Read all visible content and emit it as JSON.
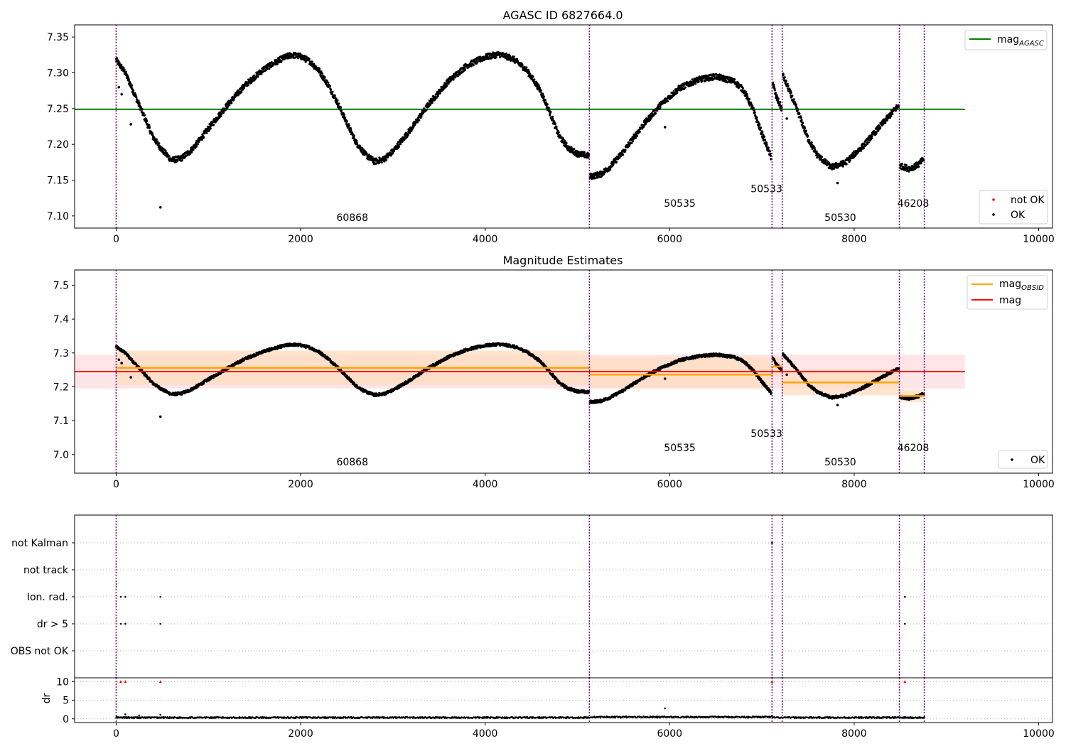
{
  "figure": {
    "title1": "AGASC ID 6827664.0",
    "title2": "Magnitude Estimates"
  },
  "colors": {
    "agasc_line": "#008000",
    "obsid_line": "#ffa500",
    "mag_line": "#ff0000",
    "obsid_band": "#ffdcc0",
    "mag_band": "#ffe1e6",
    "obs_boundary": "#800080",
    "points_ok": "#000000",
    "points_not_ok": "#ff0000",
    "grid": "#b0b0b0"
  },
  "chart_data": [
    {
      "type": "scatter",
      "title": "AGASC ID 6827664.0",
      "xlim": [
        -450,
        10150
      ],
      "ylim": [
        7.083,
        7.367
      ],
      "xticks": [
        0,
        2000,
        4000,
        6000,
        8000,
        10000
      ],
      "yticks": [
        7.1,
        7.15,
        7.2,
        7.25,
        7.3,
        7.35
      ],
      "ytick_labels": [
        "7.10",
        "7.15",
        "7.20",
        "7.25",
        "7.30",
        "7.35"
      ],
      "legend": {
        "position": "top-right",
        "entries": [
          "mag_AGASC"
        ]
      },
      "legend2": {
        "position": "bottom-right",
        "entries": [
          "not OK",
          "OK"
        ]
      },
      "hline": {
        "name": "mag_AGASC",
        "y": 7.249,
        "x": [
          -450,
          9200
        ]
      },
      "obs_boundaries": [
        0,
        5130,
        7110,
        7220,
        8490,
        8760
      ],
      "obsid_labels": [
        {
          "text": "60868",
          "x": 2560,
          "y": 7.093
        },
        {
          "text": "50535",
          "x": 6110,
          "y": 7.113
        },
        {
          "text": "50533",
          "x": 7050,
          "y": 7.133
        },
        {
          "text": "50530",
          "x": 7850,
          "y": 7.093
        },
        {
          "text": "46208",
          "x": 8640,
          "y": 7.113
        }
      ],
      "ok_trend": [
        [
          0,
          7.318
        ],
        [
          100,
          7.3
        ],
        [
          200,
          7.27
        ],
        [
          300,
          7.24
        ],
        [
          400,
          7.21
        ],
        [
          500,
          7.192
        ],
        [
          600,
          7.178
        ],
        [
          700,
          7.18
        ],
        [
          800,
          7.19
        ],
        [
          900,
          7.205
        ],
        [
          1000,
          7.222
        ],
        [
          1200,
          7.254
        ],
        [
          1400,
          7.283
        ],
        [
          1600,
          7.305
        ],
        [
          1800,
          7.32
        ],
        [
          1900,
          7.325
        ],
        [
          2000,
          7.323
        ],
        [
          2100,
          7.316
        ],
        [
          2200,
          7.303
        ],
        [
          2300,
          7.283
        ],
        [
          2400,
          7.258
        ],
        [
          2500,
          7.23
        ],
        [
          2600,
          7.203
        ],
        [
          2700,
          7.186
        ],
        [
          2800,
          7.176
        ],
        [
          2900,
          7.179
        ],
        [
          3000,
          7.19
        ],
        [
          3200,
          7.222
        ],
        [
          3400,
          7.258
        ],
        [
          3600,
          7.288
        ],
        [
          3800,
          7.31
        ],
        [
          4000,
          7.322
        ],
        [
          4150,
          7.326
        ],
        [
          4300,
          7.32
        ],
        [
          4450,
          7.304
        ],
        [
          4600,
          7.275
        ],
        [
          4700,
          7.245
        ],
        [
          4800,
          7.212
        ],
        [
          4900,
          7.195
        ],
        [
          5000,
          7.187
        ],
        [
          5125,
          7.184
        ],
        [
          5135,
          7.155
        ],
        [
          5250,
          7.158
        ],
        [
          5350,
          7.168
        ],
        [
          5500,
          7.19
        ],
        [
          5700,
          7.225
        ],
        [
          5900,
          7.255
        ],
        [
          6100,
          7.278
        ],
        [
          6300,
          7.29
        ],
        [
          6500,
          7.295
        ],
        [
          6700,
          7.288
        ],
        [
          6800,
          7.276
        ],
        [
          6900,
          7.25
        ],
        [
          7000,
          7.215
        ],
        [
          7100,
          7.182
        ],
        [
          7115,
          7.288
        ],
        [
          7150,
          7.268
        ],
        [
          7215,
          7.25
        ],
        [
          7225,
          7.297
        ],
        [
          7300,
          7.274
        ],
        [
          7400,
          7.242
        ],
        [
          7500,
          7.208
        ],
        [
          7600,
          7.185
        ],
        [
          7750,
          7.168
        ],
        [
          7900,
          7.174
        ],
        [
          8100,
          7.198
        ],
        [
          8300,
          7.228
        ],
        [
          8485,
          7.255
        ],
        [
          8495,
          7.17
        ],
        [
          8600,
          7.166
        ],
        [
          8700,
          7.172
        ],
        [
          8755,
          7.18
        ]
      ],
      "ok_outliers": [
        [
          30,
          7.28
        ],
        [
          60,
          7.27
        ],
        [
          160,
          7.228
        ],
        [
          480,
          7.112
        ],
        [
          5950,
          7.224
        ],
        [
          7270,
          7.236
        ],
        [
          7820,
          7.146
        ]
      ],
      "noise": 0.004
    },
    {
      "type": "scatter",
      "title": "Magnitude Estimates",
      "xlim": [
        -450,
        10150
      ],
      "ylim": [
        6.945,
        7.545
      ],
      "xticks": [
        0,
        2000,
        4000,
        6000,
        8000,
        10000
      ],
      "yticks": [
        7.0,
        7.1,
        7.2,
        7.3,
        7.4,
        7.5
      ],
      "ytick_labels": [
        "7.0",
        "7.1",
        "7.2",
        "7.3",
        "7.4",
        "7.5"
      ],
      "legend": {
        "position": "top-right",
        "entries": [
          "mag_OBSID",
          "mag"
        ]
      },
      "legend2": {
        "position": "bottom-right",
        "entries": [
          "OK"
        ]
      },
      "mag": {
        "name": "mag",
        "y": 7.245,
        "band": [
          7.195,
          7.295
        ],
        "x": [
          -450,
          9200
        ]
      },
      "obsid_segments": [
        {
          "x": [
            0,
            5130
          ],
          "y": 7.256,
          "band": [
            7.205,
            7.307
          ]
        },
        {
          "x": [
            5130,
            7110
          ],
          "y": 7.236,
          "band": [
            7.195,
            7.288
          ]
        },
        {
          "x": [
            7110,
            7220
          ],
          "y": 7.26,
          "band": [
            7.23,
            7.29
          ]
        },
        {
          "x": [
            7220,
            8490
          ],
          "y": 7.213,
          "band": [
            7.175,
            7.252
          ]
        },
        {
          "x": [
            8490,
            8760
          ],
          "y": 7.173,
          "band": [
            7.155,
            7.192
          ]
        }
      ],
      "obs_boundaries": [
        0,
        5130,
        7110,
        7220,
        8490,
        8760
      ],
      "obsid_labels": [
        {
          "text": "60868",
          "x": 2560,
          "y": 6.968
        },
        {
          "text": "50535",
          "x": 6110,
          "y": 7.01
        },
        {
          "text": "50533",
          "x": 7050,
          "y": 7.052
        },
        {
          "text": "50530",
          "x": 7850,
          "y": 6.968
        },
        {
          "text": "46208",
          "x": 8640,
          "y": 7.01
        }
      ]
    },
    {
      "type": "scatter",
      "title": "",
      "xlim": [
        -450,
        10150
      ],
      "categories": [
        "not Kalman",
        "not track",
        "Ion. rad.",
        "dr > 5",
        "OBS not OK"
      ],
      "flags": {
        "not Kalman": [
          7110
        ],
        "not track": [],
        "Ion. rad.": [
          50,
          100,
          480,
          8550
        ],
        "dr > 5": [
          50,
          100,
          480,
          8550
        ],
        "OBS not OK": []
      },
      "obs_boundaries": [
        0,
        5130,
        7110,
        7220,
        8490,
        8760
      ]
    },
    {
      "type": "scatter",
      "title": "",
      "ylabel": "dr",
      "xlim": [
        -450,
        10150
      ],
      "ylim": [
        -1,
        11
      ],
      "xticks": [
        0,
        2000,
        4000,
        6000,
        8000,
        10000
      ],
      "yticks": [
        0,
        5,
        10
      ],
      "ytick_labels": [
        "0",
        "5",
        "10"
      ],
      "clipped_points": [
        50,
        100,
        480,
        7110,
        8550
      ],
      "clip_value": 10,
      "dr_outliers": [
        [
          5,
          0.6
        ],
        [
          100,
          1.2
        ],
        [
          250,
          0.9
        ],
        [
          480,
          1.1
        ],
        [
          5950,
          2.8
        ],
        [
          7110,
          0.8
        ],
        [
          8550,
          0.5
        ]
      ],
      "obs_boundaries": [
        0,
        5130,
        7110,
        7220,
        8490,
        8760
      ]
    }
  ]
}
